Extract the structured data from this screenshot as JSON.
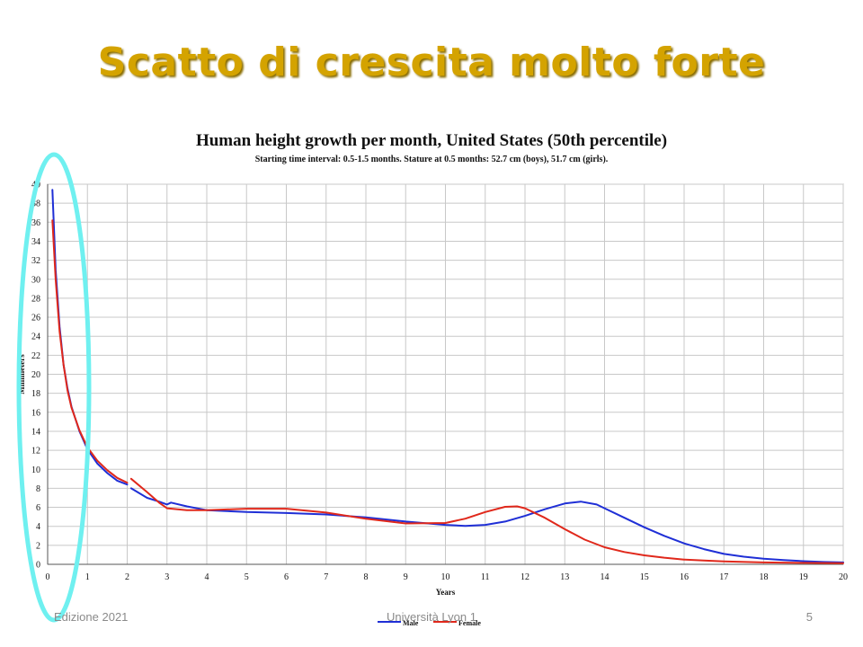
{
  "slide": {
    "title": "Scatto di crescita molto forte",
    "footer_left": "Edizione 2021",
    "footer_center": "Università Lyon 1",
    "page_number": "5"
  },
  "colors": {
    "title": "#d4a300",
    "male": "#1f2fd6",
    "female": "#e0281b",
    "highlight": "#6ff0f0",
    "grid": "#c8c8c8"
  },
  "chart_data": {
    "type": "line",
    "title": "Human height growth per month, United States (50th percentile)",
    "subtitle": "Starting time interval: 0.5-1.5 months. Stature at 0.5 months: 52.7 cm (boys), 51.7 cm (girls).",
    "xlabel": "Years",
    "ylabel": "Millimeters",
    "xlim": [
      0,
      20
    ],
    "ylim": [
      0,
      40
    ],
    "x_ticks": [
      0,
      1,
      2,
      3,
      4,
      5,
      6,
      7,
      8,
      9,
      10,
      11,
      12,
      13,
      14,
      15,
      16,
      17,
      18,
      19,
      20
    ],
    "y_ticks": [
      0,
      2,
      4,
      6,
      8,
      10,
      12,
      14,
      16,
      18,
      20,
      22,
      24,
      26,
      28,
      30,
      32,
      34,
      36,
      38,
      40
    ],
    "grid": true,
    "legend_position": "bottom",
    "series": [
      {
        "name": "Male",
        "color": "#1f2fd6",
        "segments": [
          [
            [
              0.12,
              39.4
            ],
            [
              0.2,
              31
            ],
            [
              0.3,
              25
            ],
            [
              0.4,
              21
            ],
            [
              0.5,
              18.5
            ],
            [
              0.6,
              16.6
            ],
            [
              0.8,
              14
            ],
            [
              1.0,
              12.1
            ],
            [
              1.25,
              10.6
            ],
            [
              1.5,
              9.6
            ],
            [
              1.75,
              8.8
            ],
            [
              2.0,
              8.4
            ]
          ],
          [
            [
              2.1,
              8.0
            ],
            [
              2.5,
              7.0
            ],
            [
              2.8,
              6.6
            ],
            [
              3.0,
              6.3
            ],
            [
              3.1,
              6.5
            ],
            [
              3.5,
              6.1
            ],
            [
              4.0,
              5.7
            ],
            [
              5.0,
              5.5
            ],
            [
              6.0,
              5.4
            ],
            [
              7.0,
              5.25
            ],
            [
              8.0,
              4.95
            ],
            [
              9.0,
              4.5
            ],
            [
              10.0,
              4.15
            ],
            [
              10.5,
              4.05
            ],
            [
              11.0,
              4.15
            ],
            [
              11.5,
              4.5
            ],
            [
              12.0,
              5.1
            ],
            [
              12.5,
              5.8
            ],
            [
              13.0,
              6.4
            ],
            [
              13.4,
              6.6
            ],
            [
              13.8,
              6.3
            ],
            [
              14.0,
              5.9
            ],
            [
              14.5,
              4.9
            ],
            [
              15.0,
              3.9
            ],
            [
              15.5,
              3.0
            ],
            [
              16.0,
              2.2
            ],
            [
              16.5,
              1.6
            ],
            [
              17.0,
              1.1
            ],
            [
              17.5,
              0.8
            ],
            [
              18.0,
              0.6
            ],
            [
              18.5,
              0.45
            ],
            [
              19.0,
              0.33
            ],
            [
              19.5,
              0.25
            ],
            [
              20.0,
              0.2
            ]
          ]
        ]
      },
      {
        "name": "Female",
        "color": "#e0281b",
        "segments": [
          [
            [
              0.12,
              36.2
            ],
            [
              0.2,
              30
            ],
            [
              0.3,
              24.5
            ],
            [
              0.4,
              21
            ],
            [
              0.5,
              18.3
            ],
            [
              0.6,
              16.5
            ],
            [
              0.8,
              14.1
            ],
            [
              1.0,
              12.3
            ],
            [
              1.25,
              10.9
            ],
            [
              1.5,
              9.9
            ],
            [
              1.75,
              9.1
            ],
            [
              2.0,
              8.6
            ]
          ],
          [
            [
              2.1,
              9.0
            ],
            [
              2.5,
              7.6
            ],
            [
              2.8,
              6.5
            ],
            [
              3.0,
              5.9
            ],
            [
              3.5,
              5.7
            ],
            [
              4.0,
              5.7
            ],
            [
              5.0,
              5.85
            ],
            [
              6.0,
              5.85
            ],
            [
              7.0,
              5.45
            ],
            [
              8.0,
              4.8
            ],
            [
              9.0,
              4.3
            ],
            [
              10.0,
              4.35
            ],
            [
              10.5,
              4.8
            ],
            [
              11.0,
              5.5
            ],
            [
              11.5,
              6.05
            ],
            [
              11.8,
              6.1
            ],
            [
              12.0,
              5.9
            ],
            [
              12.5,
              4.9
            ],
            [
              13.0,
              3.7
            ],
            [
              13.5,
              2.6
            ],
            [
              14.0,
              1.8
            ],
            [
              14.5,
              1.3
            ],
            [
              15.0,
              0.95
            ],
            [
              15.5,
              0.7
            ],
            [
              16.0,
              0.5
            ],
            [
              16.5,
              0.4
            ],
            [
              17.0,
              0.3
            ],
            [
              18.0,
              0.2
            ],
            [
              19.0,
              0.15
            ],
            [
              20.0,
              0.12
            ]
          ]
        ]
      }
    ]
  }
}
